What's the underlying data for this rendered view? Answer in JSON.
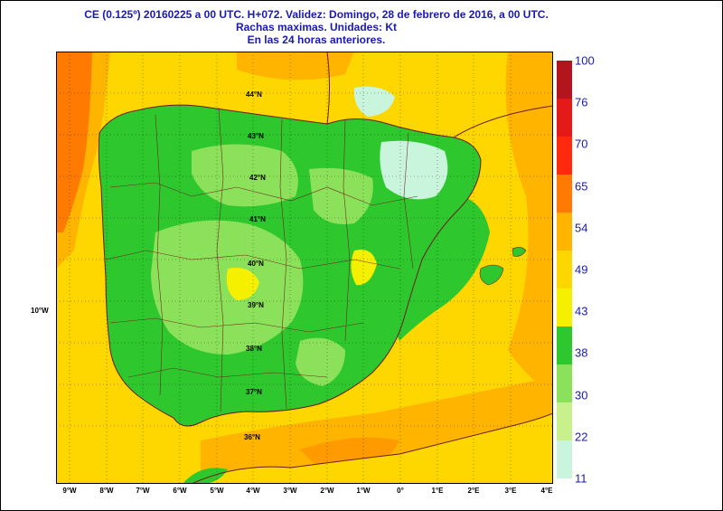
{
  "header": {
    "line1": "CE (0.125º) 20160225 a 00 UTC.  H+072. Validez: Domingo, 28 de febrero de 2016,  a  00 UTC.",
    "line2": "Rachas maximas. Unidades: Kt",
    "line3": "En las 24 horas anteriores."
  },
  "map": {
    "lat_labels": [
      "44°N",
      "43°N",
      "42°N",
      "41°N",
      "40°N",
      "39°N",
      "38°N",
      "37°N",
      "36°N"
    ],
    "lon_labels": [
      "9°W",
      "8°W",
      "7°W",
      "6°W",
      "5°W",
      "4°W",
      "3°W",
      "2°W",
      "1°W",
      "0°",
      "1°E",
      "2°E",
      "3°E",
      "4°E"
    ],
    "side_label": "10°W"
  },
  "legend": {
    "labels": [
      "100",
      "76",
      "70",
      "65",
      "54",
      "49",
      "43",
      "38",
      "30",
      "22",
      "11"
    ],
    "colors": [
      "#b4141e",
      "#e61919",
      "#ff2a0d",
      "#ff7a00",
      "#ffb400",
      "#ffd700",
      "#f5f000",
      "#2ec82e",
      "#8ce15a",
      "#c8f08c",
      "#c8f5dc"
    ]
  }
}
